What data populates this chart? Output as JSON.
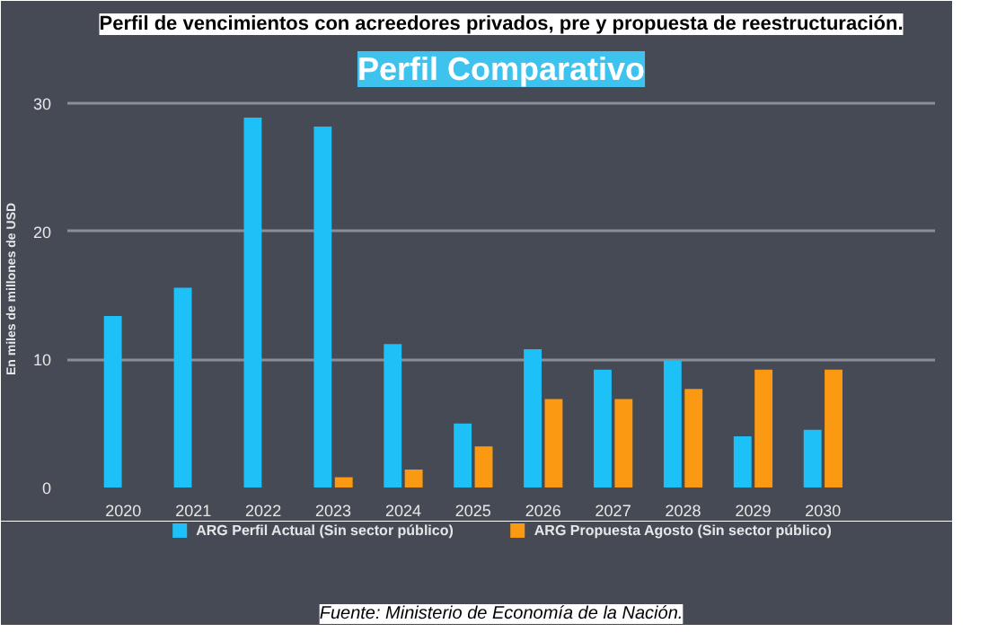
{
  "chart_data": {
    "type": "bar",
    "title": "Perfil de vencimientos con acreedores privados, pre y propuesta de reestructuración.",
    "subtitle": "Perfil Comparativo",
    "ylabel": "En miles de millones de USD",
    "categories": [
      "2020",
      "2021",
      "2022",
      "2023",
      "2024",
      "2025",
      "2026",
      "2027",
      "2028",
      "2029",
      "2030"
    ],
    "series": [
      {
        "name": "ARG Perfil Actual (Sin sector público)",
        "color": "#1ec0f8",
        "values": [
          13.4,
          15.6,
          28.9,
          28.2,
          11.2,
          5.0,
          10.8,
          9.2,
          9.9,
          4.0,
          4.5
        ]
      },
      {
        "name": "ARG Propuesta Agosto (Sin sector público)",
        "color": "#fb9a12",
        "values": [
          null,
          null,
          null,
          0.8,
          1.4,
          3.2,
          6.9,
          6.9,
          7.7,
          9.2,
          9.2
        ]
      }
    ],
    "ylim": [
      0,
      31
    ],
    "yticks": [
      0,
      10,
      20,
      30
    ],
    "grid": "y",
    "legend": "bottom",
    "annotations": [
      "Fuente: Ministerio de Economía de la Nación."
    ]
  }
}
